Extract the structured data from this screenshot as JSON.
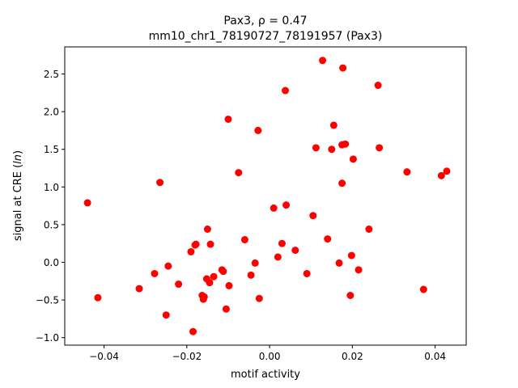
{
  "chart_data": {
    "type": "scatter",
    "title_line1": "Pax3, ρ = 0.47",
    "title_line2": "mm10_chr1_78190727_78191957 (Pax3)",
    "xlabel": "motif activity",
    "ylabel": "signal at CRE (ln)",
    "xlim": [
      -0.0495,
      0.0475
    ],
    "ylim": [
      -1.1,
      2.86
    ],
    "xticks": [
      -0.04,
      -0.02,
      0.0,
      0.02,
      0.04
    ],
    "xtick_labels": [
      "−0.04",
      "−0.02",
      "0.00",
      "0.02",
      "0.04"
    ],
    "yticks": [
      -1.0,
      -0.5,
      0.0,
      0.5,
      1.0,
      1.5,
      2.0,
      2.5
    ],
    "ytick_labels": [
      "−1.0",
      "−0.5",
      "0.0",
      "0.5",
      "1.0",
      "1.5",
      "2.0",
      "2.5"
    ],
    "marker_color": "#ff0000",
    "grid": false,
    "points": [
      [
        -0.044,
        0.79
      ],
      [
        -0.0415,
        -0.47
      ],
      [
        -0.0315,
        -0.35
      ],
      [
        -0.0278,
        -0.15
      ],
      [
        -0.0265,
        1.06
      ],
      [
        -0.025,
        -0.7
      ],
      [
        -0.0245,
        -0.05
      ],
      [
        -0.022,
        -0.29
      ],
      [
        -0.019,
        0.14
      ],
      [
        -0.0185,
        -0.92
      ],
      [
        -0.018,
        0.23
      ],
      [
        -0.0178,
        0.24
      ],
      [
        -0.0163,
        -0.44
      ],
      [
        -0.016,
        -0.49
      ],
      [
        -0.0158,
        -0.46
      ],
      [
        -0.0152,
        -0.22
      ],
      [
        -0.015,
        0.44
      ],
      [
        -0.0145,
        -0.27
      ],
      [
        -0.0143,
        0.24
      ],
      [
        -0.0135,
        -0.19
      ],
      [
        -0.0115,
        -0.1
      ],
      [
        -0.0112,
        -0.12
      ],
      [
        -0.0105,
        -0.62
      ],
      [
        -0.01,
        1.9
      ],
      [
        -0.0098,
        -0.31
      ],
      [
        -0.0075,
        1.19
      ],
      [
        -0.006,
        0.3
      ],
      [
        -0.0045,
        -0.17
      ],
      [
        -0.0035,
        -0.01
      ],
      [
        -0.0028,
        1.75
      ],
      [
        -0.0025,
        -0.48
      ],
      [
        0.001,
        0.72
      ],
      [
        0.002,
        0.07
      ],
      [
        0.003,
        0.25
      ],
      [
        0.0038,
        2.28
      ],
      [
        0.004,
        0.76
      ],
      [
        0.0062,
        0.16
      ],
      [
        0.009,
        -0.15
      ],
      [
        0.0105,
        0.62
      ],
      [
        0.0112,
        1.52
      ],
      [
        0.0128,
        2.68
      ],
      [
        0.014,
        0.31
      ],
      [
        0.015,
        1.5
      ],
      [
        0.0155,
        1.82
      ],
      [
        0.0168,
        -0.01
      ],
      [
        0.0175,
        1.05
      ],
      [
        0.0175,
        1.56
      ],
      [
        0.0177,
        2.58
      ],
      [
        0.0183,
        1.57
      ],
      [
        0.0195,
        -0.44
      ],
      [
        0.0198,
        0.09
      ],
      [
        0.0202,
        1.37
      ],
      [
        0.0215,
        -0.1
      ],
      [
        0.024,
        0.44
      ],
      [
        0.0262,
        2.35
      ],
      [
        0.0265,
        1.52
      ],
      [
        0.0332,
        1.2
      ],
      [
        0.0372,
        -0.36
      ],
      [
        0.0415,
        1.15
      ],
      [
        0.0428,
        1.21
      ]
    ]
  }
}
